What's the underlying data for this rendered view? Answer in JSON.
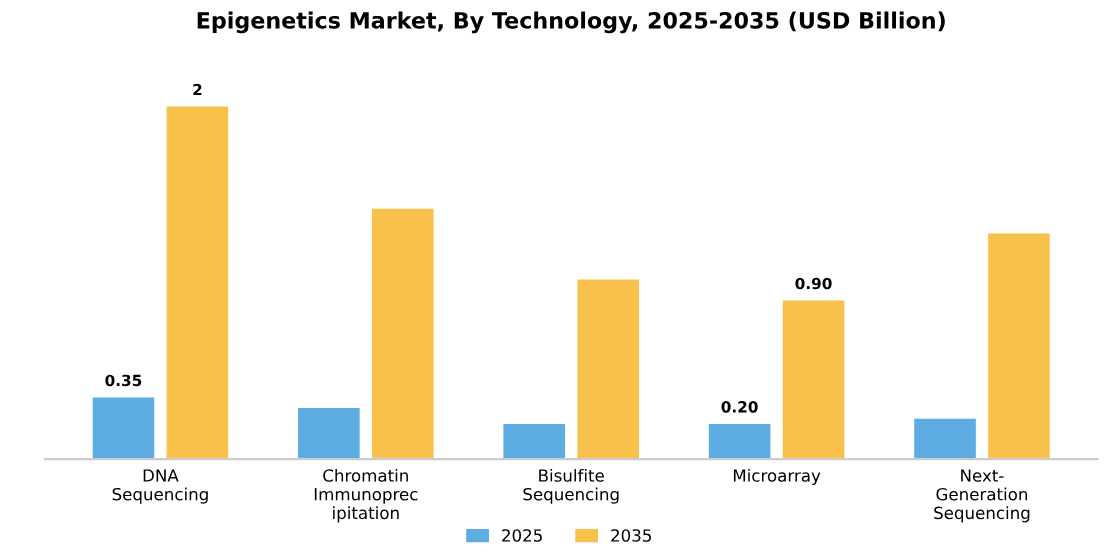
{
  "chart_data": {
    "type": "bar",
    "title": "Epigenetics Market, By Technology, 2025-2035 (USD Billion)",
    "categories": [
      "DNA\nSequencing",
      "Chromatin\nImmunoprec\nipitation",
      "Bisulfite\nSequencing",
      "Microarray",
      "Next-\nGeneration\nSequencing"
    ],
    "series": [
      {
        "name": "2025",
        "color": "#5dade2",
        "values": [
          0.35,
          0.29,
          0.2,
          0.2,
          0.23
        ],
        "value_labels": [
          "0.35",
          null,
          null,
          "0.20",
          null
        ]
      },
      {
        "name": "2035",
        "color": "#f7c14c",
        "values": [
          2,
          1.42,
          1.02,
          0.9,
          1.28
        ],
        "value_labels": [
          "2",
          null,
          null,
          "0.90",
          null
        ]
      }
    ],
    "legend": "bottom",
    "grid": false
  }
}
